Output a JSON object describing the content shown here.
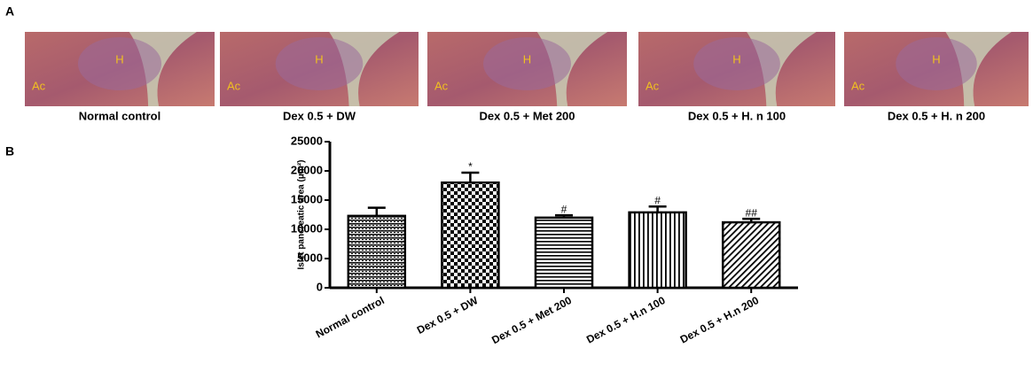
{
  "panel_a": {
    "label": "A",
    "images": [
      {
        "caption": "Normal control",
        "islet_label": "H",
        "acinar_label": "Ac"
      },
      {
        "caption": "Dex 0.5 + DW",
        "islet_label": "H",
        "acinar_label": "Ac"
      },
      {
        "caption": "Dex 0.5 + Met 200",
        "islet_label": "H",
        "acinar_label": "Ac"
      },
      {
        "caption": "Dex 0.5 + H. n 100",
        "islet_label": "H",
        "acinar_label": "Ac"
      },
      {
        "caption": "Dex 0.5 + H. n 200",
        "islet_label": "H",
        "acinar_label": "Ac"
      }
    ]
  },
  "panel_b_label": "B",
  "chart_data": {
    "type": "bar",
    "y_label": "Islet pancreatic area (μm²)",
    "categories": [
      "Normal control",
      "Dex 0.5 + DW",
      "Dex 0.5 + Met 200",
      "Dex 0.5 + H.n 100",
      "Dex 0.5 + H.n 200"
    ],
    "series": [
      {
        "color": "#000000",
        "values": [
          12300,
          18000,
          12000,
          12900,
          11200
        ],
        "errors": [
          1400,
          1700,
          400,
          1000,
          600
        ]
      }
    ],
    "significance": [
      null,
      "*",
      "#",
      "#",
      "##"
    ],
    "ylim": [
      0,
      25000
    ],
    "yticks": [
      0,
      5000,
      10000,
      15000,
      20000,
      25000
    ],
    "grid": false
  }
}
